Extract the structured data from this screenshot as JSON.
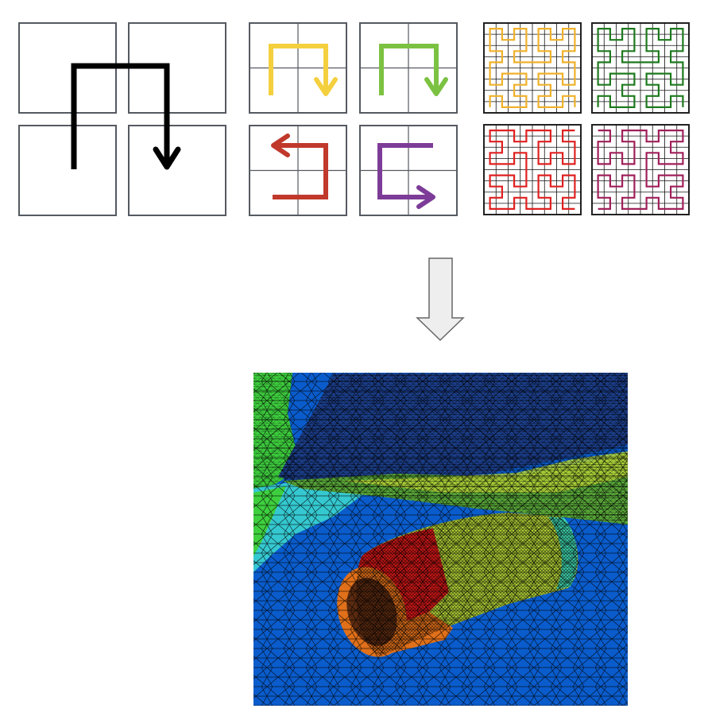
{
  "colors": {
    "level1": "#000000",
    "variants": [
      "#f4d03f",
      "#7cc242",
      "#c0392b",
      "#7d3c98"
    ],
    "fine": [
      "#f0b12a",
      "#1e7a1e",
      "#e02020",
      "#a0205a"
    ],
    "mesh": {
      "sky": "#0a5ccc",
      "wing": "#1c3f8c",
      "fuselage": "#3ecf3e",
      "fuselage_edge": "#35c8d0",
      "nacelle_front": "#d81818",
      "nacelle_mid": "#b8d838",
      "nacelle_back": "#3fd6b0",
      "nacelle_lip": "#e0701a",
      "wing_tail": "#5aaa3a"
    }
  },
  "icons": {
    "level1_curve": "hilbert-curve-level-1-icon",
    "variant_curves": [
      "hilbert-up-arrow-icon",
      "hilbert-up-arrow-icon",
      "hilbert-left-arrow-icon",
      "hilbert-right-arrow-icon"
    ],
    "fine_curves": "hilbert-curve-level-3-icon",
    "flow_arrow": "down-arrow-icon",
    "mesh_image": "aircraft-wing-nacelle-mesh-icon"
  }
}
